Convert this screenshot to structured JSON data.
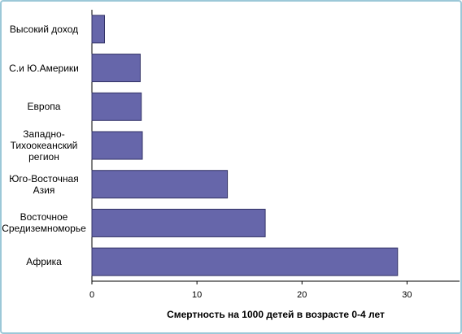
{
  "chart_data": {
    "type": "barh",
    "x_label": "Смертность на 1000 детей в возрасте 0-4 лет",
    "categories": [
      "Высокий доход",
      "С.и Ю.Америки",
      "Европа",
      "Западно-\nТихоокеанский\nрегион",
      "Юго-Восточная\nАзия",
      "Восточное\nСредиземноморье",
      "Африка"
    ],
    "values": [
      1.2,
      4.6,
      4.7,
      4.8,
      12.9,
      16.5,
      29.1
    ],
    "color": "#6666aa",
    "xlim": [
      0,
      35
    ],
    "xticks": [
      0,
      10,
      20,
      30
    ]
  }
}
